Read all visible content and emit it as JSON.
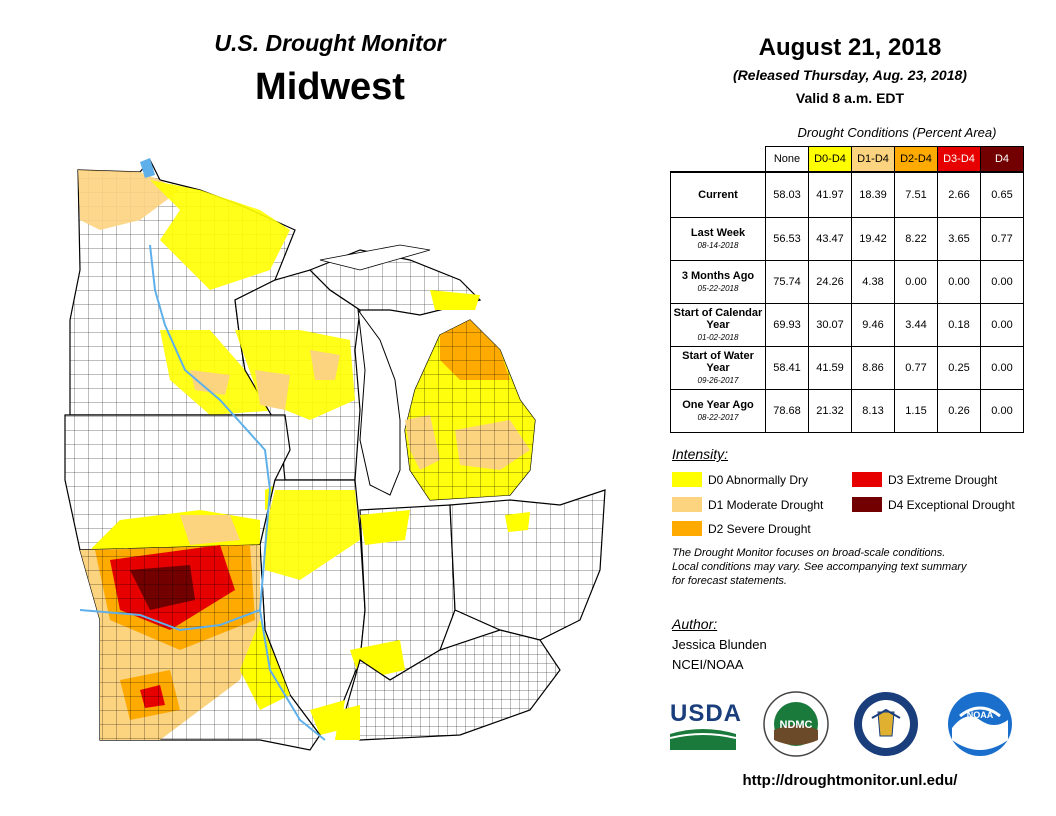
{
  "header": {
    "title": "U.S. Drought Monitor",
    "region": "Midwest",
    "date": "August 21, 2018",
    "released": "(Released Thursday, Aug. 23, 2018)",
    "valid": "Valid 8 a.m. EDT"
  },
  "table": {
    "caption": "Drought Conditions (Percent Area)",
    "columns": [
      "None",
      "D0-D4",
      "D1-D4",
      "D2-D4",
      "D3-D4",
      "D4"
    ],
    "column_colors": [
      "#ffffff",
      "#ffff00",
      "#fcd37f",
      "#ffaa00",
      "#e60000",
      "#730000"
    ],
    "rows": [
      {
        "label": "Current",
        "sublabel": "",
        "values": [
          "58.03",
          "41.97",
          "18.39",
          "7.51",
          "2.66",
          "0.65"
        ]
      },
      {
        "label": "Last Week",
        "sublabel": "08-14-2018",
        "values": [
          "56.53",
          "43.47",
          "19.42",
          "8.22",
          "3.65",
          "0.77"
        ]
      },
      {
        "label": "3 Months Ago",
        "sublabel": "05-22-2018",
        "values": [
          "75.74",
          "24.26",
          "4.38",
          "0.00",
          "0.00",
          "0.00"
        ]
      },
      {
        "label": "Start of Calendar Year",
        "sublabel": "01-02-2018",
        "values": [
          "69.93",
          "30.07",
          "9.46",
          "3.44",
          "0.18",
          "0.00"
        ]
      },
      {
        "label": "Start of Water Year",
        "sublabel": "09-26-2017",
        "values": [
          "58.41",
          "41.59",
          "8.86",
          "0.77",
          "0.25",
          "0.00"
        ]
      },
      {
        "label": "One Year Ago",
        "sublabel": "08-22-2017",
        "values": [
          "78.68",
          "21.32",
          "8.13",
          "1.15",
          "0.26",
          "0.00"
        ]
      }
    ]
  },
  "legend": {
    "heading": "Intensity:",
    "items": [
      {
        "label": "D0 Abnormally Dry",
        "color": "#ffff00"
      },
      {
        "label": "D1 Moderate Drought",
        "color": "#fcd37f"
      },
      {
        "label": "D2 Severe Drought",
        "color": "#ffaa00"
      },
      {
        "label": "D3 Extreme Drought",
        "color": "#e60000"
      },
      {
        "label": "D4 Exceptional Drought",
        "color": "#730000"
      }
    ]
  },
  "note": {
    "line1": "The Drought Monitor focuses on broad-scale conditions.",
    "line2": "Local conditions may vary. See accompanying text summary",
    "line3": "for forecast statements."
  },
  "author": {
    "heading": "Author:",
    "name": "Jessica Blunden",
    "org": "NCEI/NOAA"
  },
  "logos": {
    "usda": "USDA",
    "ndmc": "NDMC",
    "noaa": "NOAA"
  },
  "url": "http://droughtmonitor.unl.edu/",
  "colors": {
    "water": "#5fb0ea",
    "d0": "#ffff00",
    "d1": "#fcd37f",
    "d2": "#ffaa00",
    "d3": "#e60000",
    "d4": "#730000"
  }
}
